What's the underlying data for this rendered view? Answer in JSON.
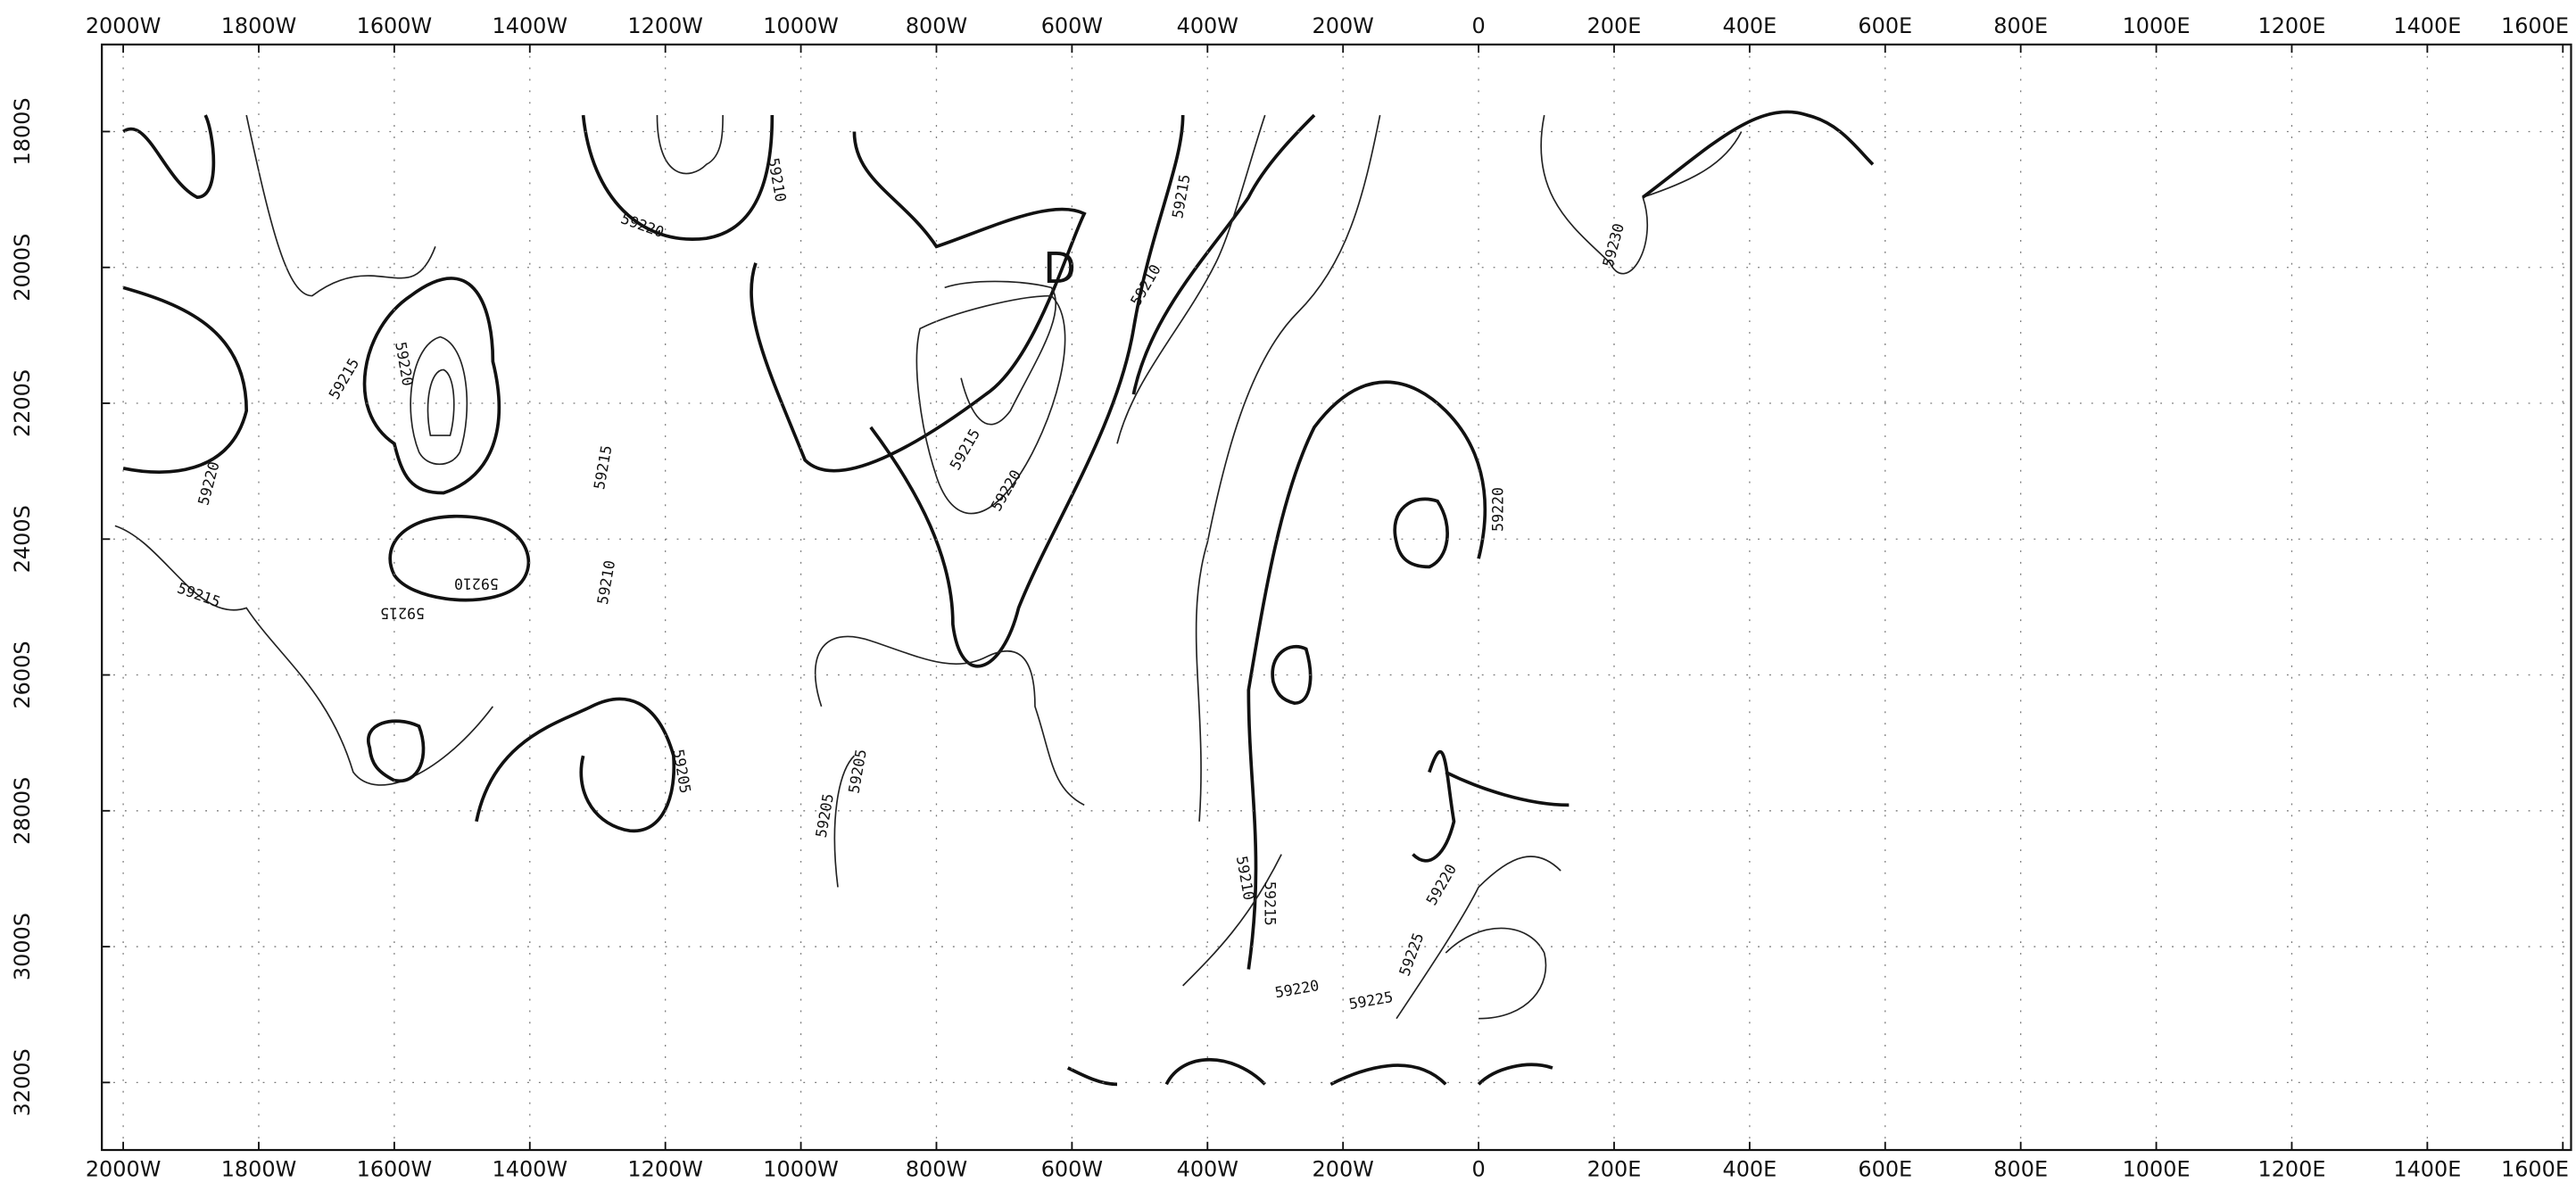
{
  "x_axis": {
    "labels": [
      "2000W",
      "1800W",
      "1600W",
      "1400W",
      "1200W",
      "1000W",
      "800W",
      "600W",
      "400W",
      "200W",
      "0",
      "200E",
      "400E",
      "600E",
      "800E",
      "1000E",
      "1200E",
      "1400E",
      "1600E"
    ]
  },
  "y_axis": {
    "labels": [
      "1800S",
      "2000S",
      "2200S",
      "2400S",
      "2600S",
      "2800S",
      "3000S",
      "3200S"
    ]
  },
  "marker": "D",
  "contour_labels": [
    "59220",
    "59210",
    "59215",
    "59210",
    "59230",
    "59215",
    "59220",
    "59220",
    "59215",
    "59215",
    "59210",
    "59215",
    "59210",
    "59215",
    "59220",
    "59220",
    "59205",
    "59205",
    "59205",
    "59210",
    "59215",
    "59220",
    "59225",
    "59220",
    "59225"
  ]
}
